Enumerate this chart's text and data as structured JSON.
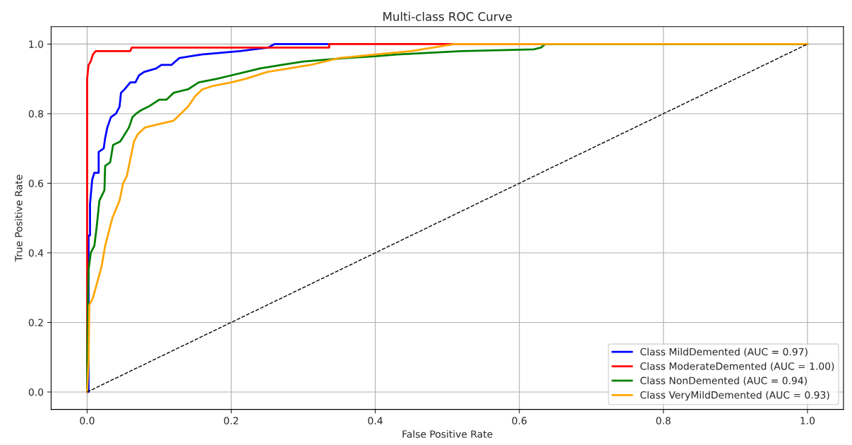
{
  "chart_data": {
    "type": "line",
    "title": "Multi-class ROC Curve",
    "xlabel": "False Positive Rate",
    "ylabel": "True Positive Rate",
    "xlim": [
      -0.05,
      1.05
    ],
    "ylim": [
      -0.05,
      1.05
    ],
    "xticks": [
      {
        "value": 0,
        "label": "0.0"
      },
      {
        "value": 0.2,
        "label": "0.2"
      },
      {
        "value": 0.4,
        "label": "0.4"
      },
      {
        "value": 0.6,
        "label": "0.6"
      },
      {
        "value": 0.8,
        "label": "0.8"
      },
      {
        "value": 1,
        "label": "1.0"
      }
    ],
    "yticks": [
      {
        "value": 0,
        "label": "0.0"
      },
      {
        "value": 0.2,
        "label": "0.2"
      },
      {
        "value": 0.4,
        "label": "0.4"
      },
      {
        "value": 0.6,
        "label": "0.6"
      },
      {
        "value": 0.8,
        "label": "0.8"
      },
      {
        "value": 1,
        "label": "1.0"
      }
    ],
    "grid": true,
    "legend": "bottom right",
    "series": [
      {
        "name": "Class MildDemented (AUC = 0.97)",
        "color": "#0000ff",
        "x": [
          0,
          0.002,
          0.002,
          0.004,
          0.004,
          0.007,
          0.01,
          0.016,
          0.016,
          0.023,
          0.025,
          0.028,
          0.033,
          0.04,
          0.045,
          0.047,
          0.052,
          0.06,
          0.067,
          0.072,
          0.079,
          0.096,
          0.103,
          0.117,
          0.128,
          0.159,
          0.212,
          0.251,
          0.26,
          0.338
        ],
        "values": [
          0,
          0,
          0.45,
          0.45,
          0.54,
          0.61,
          0.63,
          0.63,
          0.69,
          0.7,
          0.73,
          0.76,
          0.79,
          0.8,
          0.82,
          0.86,
          0.87,
          0.89,
          0.89,
          0.91,
          0.92,
          0.93,
          0.94,
          0.94,
          0.96,
          0.97,
          0.98,
          0.99,
          1.0,
          1.0
        ]
      },
      {
        "name": "Class ModerateDemented (AUC = 1.00)",
        "color": "#ff0000",
        "x": [
          0,
          0,
          0.002,
          0.005,
          0.008,
          0.012,
          0.06,
          0.062,
          0.336,
          0.336,
          1.0
        ],
        "values": [
          0,
          0.9,
          0.94,
          0.95,
          0.97,
          0.98,
          0.98,
          0.99,
          0.99,
          1.0,
          1.0
        ]
      },
      {
        "name": "Class NonDemented (AUC = 0.94)",
        "color": "#008000",
        "x": [
          0,
          0,
          0.001,
          0.002,
          0.005,
          0.01,
          0.013,
          0.017,
          0.024,
          0.025,
          0.032,
          0.036,
          0.046,
          0.052,
          0.058,
          0.063,
          0.068,
          0.075,
          0.085,
          0.1,
          0.11,
          0.12,
          0.14,
          0.155,
          0.18,
          0.2,
          0.22,
          0.24,
          0.27,
          0.3,
          0.33,
          0.36,
          0.4,
          0.43,
          0.52,
          0.62,
          0.63,
          0.636,
          1.0
        ],
        "values": [
          0,
          0.05,
          0.25,
          0.35,
          0.4,
          0.42,
          0.47,
          0.55,
          0.58,
          0.65,
          0.66,
          0.71,
          0.72,
          0.74,
          0.76,
          0.79,
          0.8,
          0.81,
          0.82,
          0.84,
          0.84,
          0.86,
          0.87,
          0.89,
          0.9,
          0.91,
          0.92,
          0.93,
          0.94,
          0.95,
          0.955,
          0.96,
          0.965,
          0.97,
          0.98,
          0.985,
          0.99,
          1.0,
          1.0
        ]
      },
      {
        "name": "Class VeryMildDemented (AUC = 0.93)",
        "color": "#ffa500",
        "x": [
          0,
          0.002,
          0.003,
          0.008,
          0.012,
          0.016,
          0.02,
          0.025,
          0.03,
          0.035,
          0.045,
          0.05,
          0.055,
          0.06,
          0.065,
          0.07,
          0.08,
          0.1,
          0.12,
          0.13,
          0.14,
          0.15,
          0.16,
          0.175,
          0.2,
          0.22,
          0.25,
          0.28,
          0.31,
          0.35,
          0.4,
          0.45,
          0.48,
          0.51,
          1.0
        ],
        "values": [
          0,
          0.09,
          0.25,
          0.27,
          0.3,
          0.33,
          0.36,
          0.42,
          0.46,
          0.5,
          0.55,
          0.6,
          0.62,
          0.67,
          0.72,
          0.74,
          0.76,
          0.77,
          0.78,
          0.8,
          0.82,
          0.85,
          0.87,
          0.88,
          0.89,
          0.9,
          0.92,
          0.93,
          0.94,
          0.96,
          0.97,
          0.98,
          0.99,
          1.0,
          1.0
        ]
      },
      {
        "color": "#000000",
        "line_style": "dashed",
        "x": [
          0,
          1
        ],
        "values": [
          0,
          1
        ]
      }
    ]
  }
}
